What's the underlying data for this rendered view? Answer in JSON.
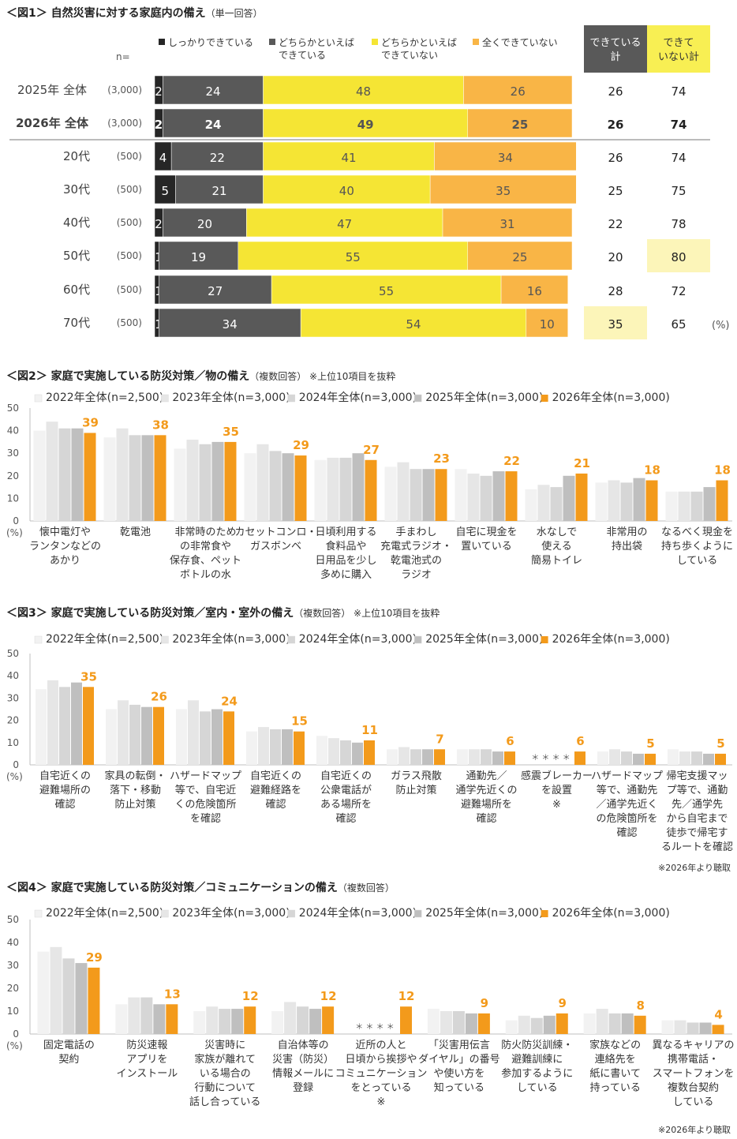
{
  "fig1": {
    "title": "＜図1＞ 自然災害に対する家庭内の備え",
    "subtitle": "（単一回答）",
    "n_header": "n=",
    "legend": [
      {
        "label": "しっかりできている",
        "color": "#262626"
      },
      {
        "label": "どちらかといえば\nできている",
        "color": "#595959"
      },
      {
        "label": "どちらかといえば\nできていない",
        "color": "#f5e534"
      },
      {
        "label": "全くできていない",
        "color": "#f9b546"
      }
    ],
    "col_headers": [
      {
        "label": "できている\n計",
        "bg": "#595959",
        "color": "#ffffff"
      },
      {
        "label": "できて\nいない計",
        "bg": "#f8ef53",
        "color": "#333333"
      }
    ],
    "unit": "(%)"
  },
  "fig2": {
    "title": "＜図2＞ 家庭で実施している防災対策／物の備え",
    "subtitle": "（複数回答） ※上位10項目を抜粋",
    "footnote": ""
  },
  "fig3": {
    "title": "＜図3＞ 家庭で実施している防災対策／室内・室外の備え",
    "subtitle": "（複数回答） ※上位10項目を抜粋",
    "footnote": "※2026年より聴取"
  },
  "fig4": {
    "title": "＜図4＞ 家庭で実施している防災対策／コミュニケーションの備え",
    "subtitle": "（複数回答）",
    "footnote": "※2026年より聴取"
  },
  "chart_data": [
    {
      "type": "bar",
      "orientation": "horizontal",
      "stacked": true,
      "rows": [
        {
          "label": "2025年 全体",
          "n": "(3,000)",
          "bold": false,
          "values": [
            2,
            24,
            48,
            26
          ],
          "done_total": 26,
          "notdone_total": 74
        },
        {
          "label": "2026年 全体",
          "n": "(3,000)",
          "bold": true,
          "values": [
            2,
            24,
            49,
            25
          ],
          "done_total": 26,
          "notdone_total": 74
        },
        {
          "label": "20代",
          "n": "(500)",
          "bold": false,
          "values": [
            4,
            22,
            41,
            34
          ],
          "done_total": 26,
          "notdone_total": 74
        },
        {
          "label": "30代",
          "n": "(500)",
          "bold": false,
          "values": [
            5,
            21,
            40,
            35
          ],
          "done_total": 25,
          "notdone_total": 75
        },
        {
          "label": "40代",
          "n": "(500)",
          "bold": false,
          "values": [
            2,
            20,
            47,
            31
          ],
          "done_total": 22,
          "notdone_total": 78
        },
        {
          "label": "50代",
          "n": "(500)",
          "bold": false,
          "values": [
            1,
            19,
            55,
            25
          ],
          "done_total": 20,
          "notdone_total": 80,
          "highlight_notdone": true
        },
        {
          "label": "60代",
          "n": "(500)",
          "bold": false,
          "values": [
            1,
            27,
            55,
            16
          ],
          "done_total": 28,
          "notdone_total": 72
        },
        {
          "label": "70代",
          "n": "(500)",
          "bold": false,
          "values": [
            1,
            34,
            54,
            10
          ],
          "done_total": 35,
          "notdone_total": 65,
          "highlight_done": true
        }
      ],
      "series": [
        "しっかりできている",
        "どちらかといえばできている",
        "どちらかといえばできていない",
        "全くできていない"
      ],
      "xlim": [
        0,
        100
      ]
    },
    {
      "type": "bar",
      "series": [
        {
          "name": "2022年全体(n=2,500)",
          "color": "#f2f2f2"
        },
        {
          "name": "2023年全体(n=3,000)",
          "color": "#e6e6e6"
        },
        {
          "name": "2024年全体(n=3,000)",
          "color": "#d6d6d6"
        },
        {
          "name": "2025年全体(n=3,000)",
          "color": "#bfbfbf"
        },
        {
          "name": "2026年全体(n=3,000)",
          "color": "#f39a1b"
        }
      ],
      "categories": [
        {
          "label": "懐中電灯や\nランタンなどの\nあかり",
          "values": [
            40,
            44,
            41,
            41,
            39
          ]
        },
        {
          "label": "乾電池",
          "values": [
            37,
            41,
            38,
            38,
            38
          ]
        },
        {
          "label": "非常時のため\nの非常食や\n保存食、ペット\nボトルの水",
          "values": [
            32,
            36,
            34,
            35,
            35
          ]
        },
        {
          "label": "カセットコンロ・\nガスボンベ",
          "values": [
            30,
            34,
            31,
            30,
            29
          ]
        },
        {
          "label": "日頃利用する\n食料品や\n日用品を少し\n多めに購入",
          "values": [
            27,
            28,
            28,
            30,
            27
          ]
        },
        {
          "label": "手まわし\n充電式ラジオ・\n乾電池式の\nラジオ",
          "values": [
            24,
            26,
            23,
            23,
            23
          ]
        },
        {
          "label": "自宅に現金を\n置いている",
          "values": [
            23,
            21,
            20,
            22,
            22
          ]
        },
        {
          "label": "水なしで\n使える\n簡易トイレ",
          "values": [
            14,
            16,
            15,
            20,
            21
          ]
        },
        {
          "label": "非常用の\n持出袋",
          "values": [
            17,
            18,
            17,
            19,
            18
          ]
        },
        {
          "label": "なるべく現金を\n持ち歩くように\nしている",
          "values": [
            13,
            13,
            13,
            15,
            18
          ]
        }
      ],
      "ylim": [
        0,
        50
      ],
      "yticks": [
        0,
        10,
        20,
        30,
        40,
        50
      ],
      "unit": "(%)"
    },
    {
      "type": "bar",
      "series": [
        {
          "name": "2022年全体(n=2,500)",
          "color": "#f2f2f2"
        },
        {
          "name": "2023年全体(n=3,000)",
          "color": "#e6e6e6"
        },
        {
          "name": "2024年全体(n=3,000)",
          "color": "#d6d6d6"
        },
        {
          "name": "2025年全体(n=3,000)",
          "color": "#bfbfbf"
        },
        {
          "name": "2026年全体(n=3,000)",
          "color": "#f39a1b"
        }
      ],
      "categories": [
        {
          "label": "自宅近くの\n避難場所の\n確認",
          "values": [
            34,
            38,
            35,
            37,
            35
          ]
        },
        {
          "label": "家具の転倒・\n落下・移動\n防止対策",
          "values": [
            25,
            29,
            27,
            26,
            26
          ]
        },
        {
          "label": "ハザードマップ\n等で、自宅近\nくの危険箇所\nを確認",
          "values": [
            25,
            29,
            24,
            25,
            24
          ]
        },
        {
          "label": "自宅近くの\n避難経路を\n確認",
          "values": [
            15,
            17,
            16,
            16,
            15
          ]
        },
        {
          "label": "自宅近くの\n公衆電話が\nある場所を\n確認",
          "values": [
            13,
            12,
            11,
            10,
            11
          ]
        },
        {
          "label": "ガラス飛散\n防止対策",
          "values": [
            7,
            8,
            7,
            7,
            7
          ]
        },
        {
          "label": "通勤先／\n通学先近くの\n避難場所を\n確認",
          "values": [
            7,
            7,
            7,
            6,
            6
          ]
        },
        {
          "label": "感震ブレーカー\nを設置\n※",
          "values": [
            null,
            null,
            null,
            null,
            6
          ],
          "stars": "＊＊＊＊"
        },
        {
          "label": "ハザードマップ\n等で、通勤先\n／通学先近く\nの危険箇所を\n確認",
          "values": [
            6,
            7,
            6,
            5,
            5
          ]
        },
        {
          "label": "帰宅支援マッ\nプ等で、通勤\n先／通学先\nから自宅まで\n徒歩で帰宅す\nるルートを確認",
          "values": [
            7,
            6,
            6,
            5,
            5
          ]
        }
      ],
      "ylim": [
        0,
        50
      ],
      "yticks": [
        0,
        10,
        20,
        30,
        40,
        50
      ],
      "unit": "(%)"
    },
    {
      "type": "bar",
      "series": [
        {
          "name": "2022年全体(n=2,500)",
          "color": "#f2f2f2"
        },
        {
          "name": "2023年全体(n=3,000)",
          "color": "#e6e6e6"
        },
        {
          "name": "2024年全体(n=3,000)",
          "color": "#d6d6d6"
        },
        {
          "name": "2025年全体(n=3,000)",
          "color": "#bfbfbf"
        },
        {
          "name": "2026年全体(n=3,000)",
          "color": "#f39a1b"
        }
      ],
      "categories": [
        {
          "label": "固定電話の\n契約",
          "values": [
            36,
            38,
            33,
            31,
            29
          ]
        },
        {
          "label": "防災速報\nアプリを\nインストール",
          "values": [
            13,
            16,
            16,
            13,
            13
          ]
        },
        {
          "label": "災害時に\n家族が離れて\nいる場合の\n行動について\n話し合っている",
          "values": [
            10,
            12,
            11,
            11,
            12
          ]
        },
        {
          "label": "自治体等の\n災害（防災）\n情報メールに\n登録",
          "values": [
            10,
            14,
            12,
            11,
            12
          ]
        },
        {
          "label": "近所の人と\n日頃から挨拶や\nコミュニケーション\nをとっている\n※",
          "values": [
            null,
            null,
            null,
            null,
            12
          ],
          "stars": "＊＊＊＊"
        },
        {
          "label": "「災害用伝言\nダイヤル」の番号\nや使い方を\n知っている",
          "values": [
            11,
            10,
            10,
            9,
            9
          ]
        },
        {
          "label": "防火防災訓練・\n避難訓練に\n参加するように\nしている",
          "values": [
            6,
            8,
            7,
            8,
            9
          ]
        },
        {
          "label": "家族などの\n連絡先を\n紙に書いて\n持っている",
          "values": [
            9,
            11,
            9,
            9,
            8
          ]
        },
        {
          "label": "異なるキャリアの\n携帯電話・\nスマートフォンを\n複数台契約\nしている",
          "values": [
            6,
            6,
            5,
            5,
            4
          ]
        }
      ],
      "ylim": [
        0,
        50
      ],
      "yticks": [
        0,
        10,
        20,
        30,
        40,
        50
      ],
      "unit": "(%)"
    }
  ]
}
